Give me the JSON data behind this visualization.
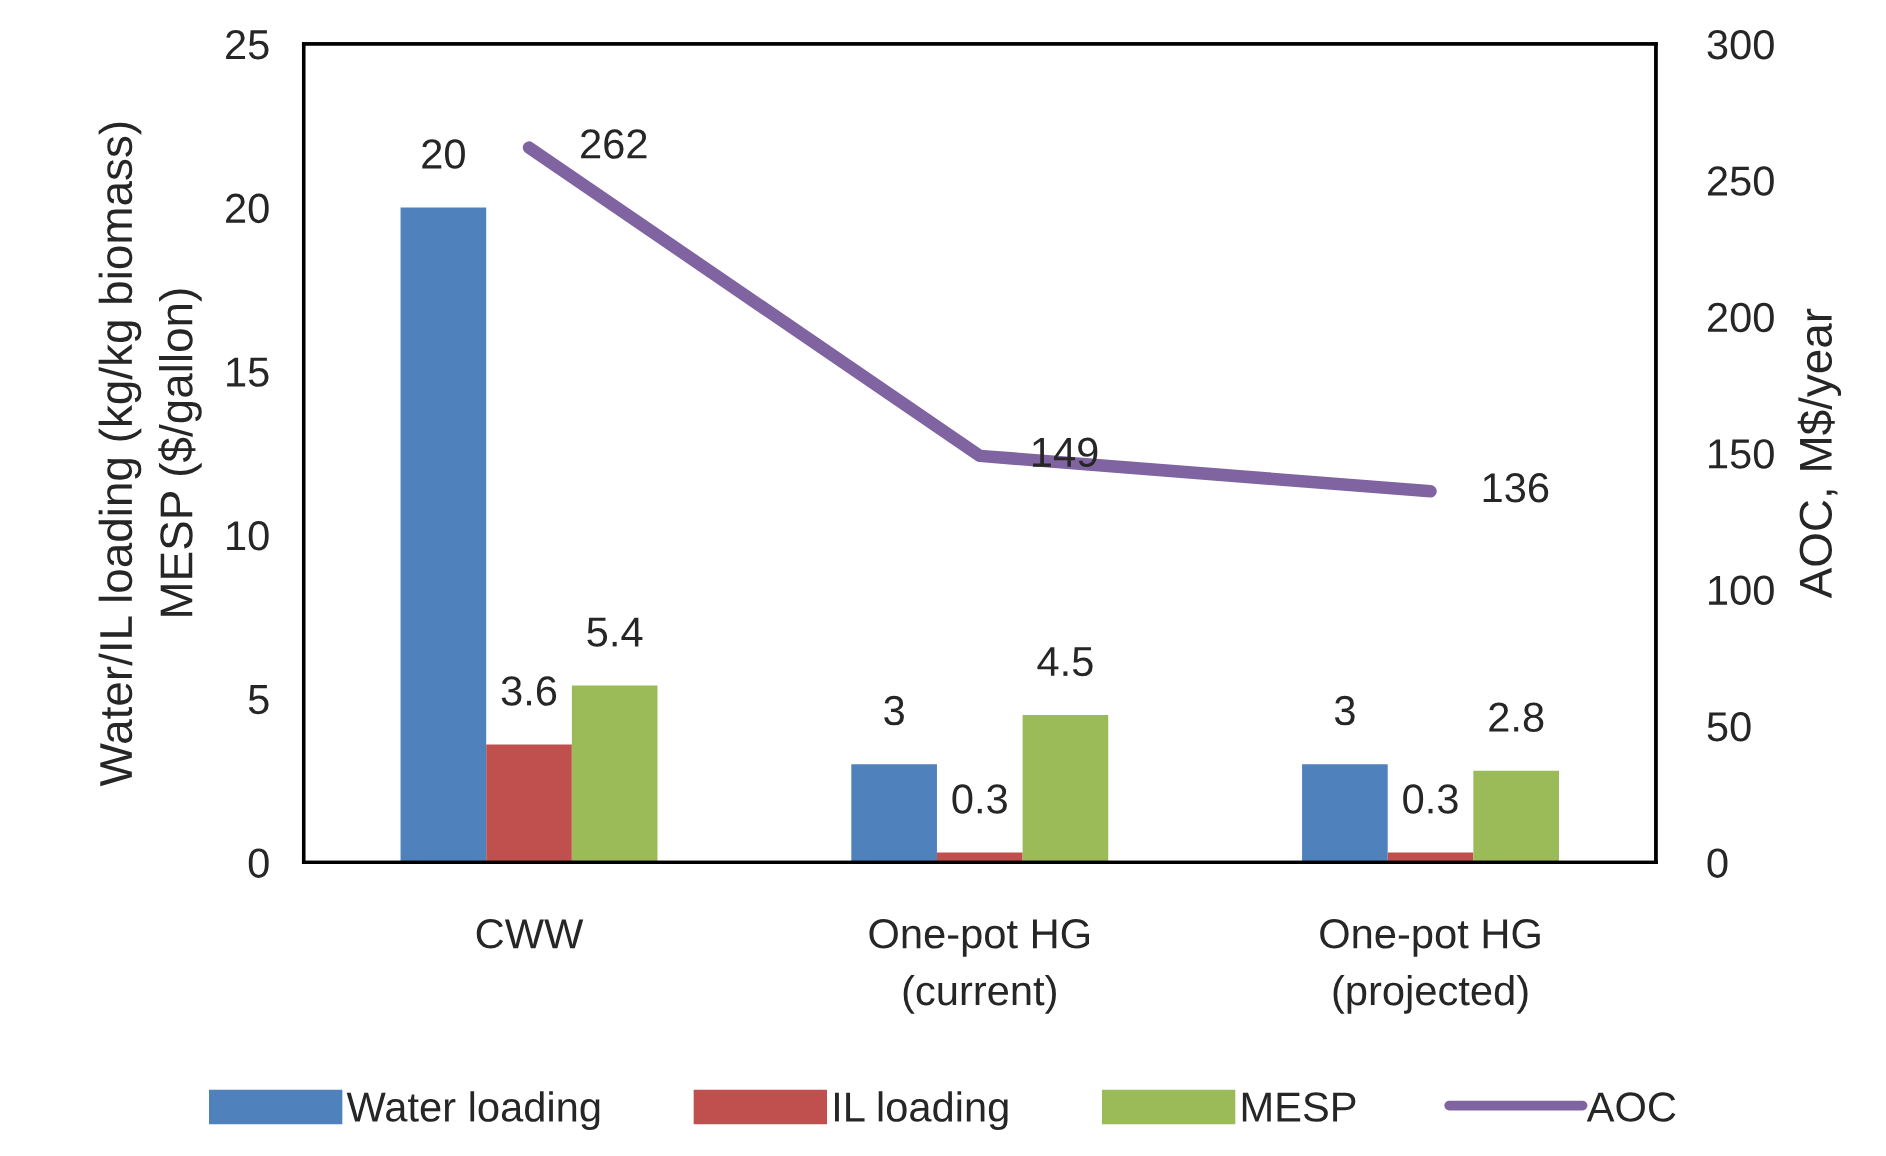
{
  "chart_data": {
    "type": "bar",
    "categories": [
      "CWW",
      "One-pot HG\n(current)",
      "One-pot HG\n(projected)"
    ],
    "series": [
      {
        "name": "Water loading",
        "color": "#4f81bd",
        "values": [
          20,
          3,
          3
        ]
      },
      {
        "name": "IL loading",
        "color": "#c0504d",
        "values": [
          3.6,
          0.3,
          0.3
        ]
      },
      {
        "name": "MESP",
        "color": "#9bbb59",
        "values": [
          5.4,
          4.5,
          2.8
        ]
      },
      {
        "name": "AOC",
        "type": "line",
        "axis": "y2",
        "color": "#8064a2",
        "values": [
          262,
          149,
          136
        ]
      }
    ],
    "ylabel": "Water/IL loading (kg/kg biomass)\nMESP ($/gallon)",
    "y2label": "AOC, M$/year",
    "ylim": [
      0,
      25
    ],
    "yticks": [
      0,
      5,
      10,
      15,
      20,
      25
    ],
    "y2lim": [
      0,
      300
    ],
    "y2ticks": [
      0,
      50,
      100,
      150,
      200,
      250,
      300
    ],
    "data_labels": true,
    "legend": "bottom",
    "grid": false
  }
}
